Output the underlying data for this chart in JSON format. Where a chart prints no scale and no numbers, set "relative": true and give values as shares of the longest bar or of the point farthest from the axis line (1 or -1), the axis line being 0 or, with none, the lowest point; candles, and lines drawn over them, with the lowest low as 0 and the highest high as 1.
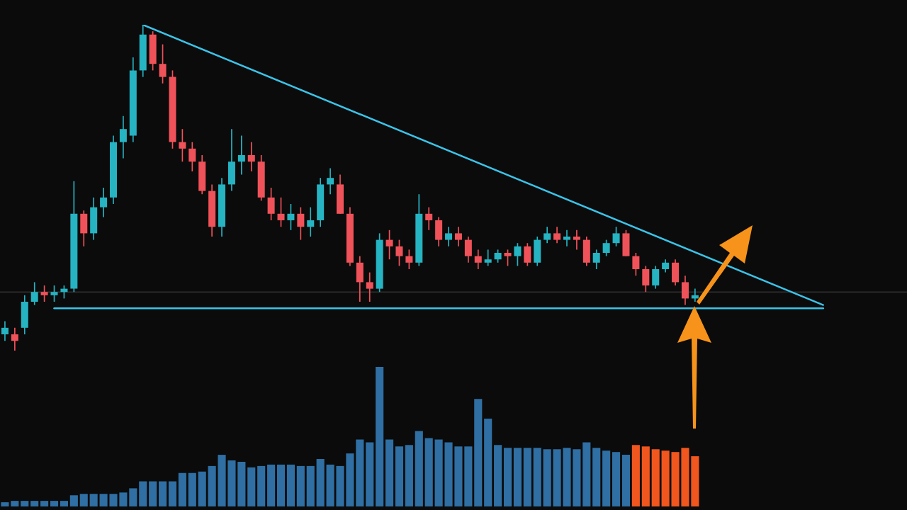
{
  "chart_data": [
    {
      "type": "candlestick",
      "relative": true,
      "legend": false,
      "categories": [
        null,
        null,
        null,
        null,
        null,
        null,
        null,
        null,
        null,
        null,
        null,
        null,
        null,
        null,
        null,
        null,
        null,
        null,
        null,
        null,
        null,
        null,
        null,
        null,
        null,
        null,
        null,
        null,
        null,
        null,
        null,
        null,
        null,
        null,
        null,
        null,
        null,
        null,
        null,
        null,
        null,
        null,
        null,
        null,
        null,
        null,
        null,
        null,
        null,
        null,
        null,
        null,
        null,
        null,
        null,
        null,
        null,
        null,
        null,
        null,
        null,
        null,
        null,
        null,
        null,
        null,
        null,
        null,
        null,
        null,
        null,
        null,
        null,
        null,
        null,
        null,
        null,
        null,
        null,
        null,
        null,
        null,
        null,
        null,
        null,
        null,
        null,
        null,
        null,
        null,
        null,
        null
      ],
      "ohlc": [
        [
          0.05,
          0.09,
          0.03,
          0.07
        ],
        [
          0.05,
          0.07,
          0,
          0.03
        ],
        [
          0.07,
          0.17,
          0.05,
          0.15
        ],
        [
          0.15,
          0.21,
          0.14,
          0.18
        ],
        [
          0.18,
          0.2,
          0.15,
          0.17
        ],
        [
          0.17,
          0.2,
          0.15,
          0.18
        ],
        [
          0.18,
          0.2,
          0.16,
          0.19
        ],
        [
          0.19,
          0.52,
          0.18,
          0.42
        ],
        [
          0.42,
          0.43,
          0.32,
          0.36
        ],
        [
          0.36,
          0.47,
          0.34,
          0.44
        ],
        [
          0.44,
          0.5,
          0.41,
          0.47
        ],
        [
          0.47,
          0.66,
          0.45,
          0.64
        ],
        [
          0.64,
          0.72,
          0.59,
          0.68
        ],
        [
          0.66,
          0.9,
          0.64,
          0.86
        ],
        [
          0.86,
          1,
          0.84,
          0.97
        ],
        [
          0.97,
          0.98,
          0.86,
          0.88
        ],
        [
          0.88,
          0.94,
          0.82,
          0.84
        ],
        [
          0.84,
          0.86,
          0.62,
          0.64
        ],
        [
          0.64,
          0.68,
          0.58,
          0.62
        ],
        [
          0.62,
          0.64,
          0.55,
          0.58
        ],
        [
          0.58,
          0.6,
          0.48,
          0.49
        ],
        [
          0.49,
          0.51,
          0.35,
          0.38
        ],
        [
          0.38,
          0.53,
          0.35,
          0.51
        ],
        [
          0.51,
          0.68,
          0.49,
          0.58
        ],
        [
          0.58,
          0.66,
          0.54,
          0.6
        ],
        [
          0.6,
          0.64,
          0.55,
          0.58
        ],
        [
          0.58,
          0.6,
          0.46,
          0.47
        ],
        [
          0.47,
          0.5,
          0.4,
          0.42
        ],
        [
          0.42,
          0.47,
          0.38,
          0.4
        ],
        [
          0.4,
          0.45,
          0.37,
          0.42
        ],
        [
          0.42,
          0.44,
          0.34,
          0.38
        ],
        [
          0.38,
          0.44,
          0.35,
          0.4
        ],
        [
          0.4,
          0.53,
          0.38,
          0.51
        ],
        [
          0.51,
          0.56,
          0.48,
          0.53
        ],
        [
          0.51,
          0.54,
          0.42,
          0.42
        ],
        [
          0.42,
          0.44,
          0.26,
          0.27
        ],
        [
          0.27,
          0.29,
          0.15,
          0.21
        ],
        [
          0.21,
          0.24,
          0.15,
          0.19
        ],
        [
          0.19,
          0.36,
          0.18,
          0.34
        ],
        [
          0.34,
          0.37,
          0.28,
          0.32
        ],
        [
          0.32,
          0.34,
          0.26,
          0.29
        ],
        [
          0.29,
          0.31,
          0.25,
          0.27
        ],
        [
          0.27,
          0.48,
          0.26,
          0.42
        ],
        [
          0.42,
          0.44,
          0.37,
          0.4
        ],
        [
          0.4,
          0.41,
          0.32,
          0.34
        ],
        [
          0.34,
          0.38,
          0.32,
          0.36
        ],
        [
          0.36,
          0.38,
          0.32,
          0.34
        ],
        [
          0.34,
          0.35,
          0.27,
          0.29
        ],
        [
          0.29,
          0.31,
          0.25,
          0.27
        ],
        [
          0.27,
          0.31,
          0.26,
          0.28
        ],
        [
          0.28,
          0.31,
          0.27,
          0.3
        ],
        [
          0.3,
          0.31,
          0.26,
          0.29
        ],
        [
          0.29,
          0.33,
          0.26,
          0.32
        ],
        [
          0.32,
          0.33,
          0.26,
          0.27
        ],
        [
          0.27,
          0.35,
          0.26,
          0.34
        ],
        [
          0.34,
          0.38,
          0.33,
          0.36
        ],
        [
          0.36,
          0.38,
          0.33,
          0.34
        ],
        [
          0.34,
          0.37,
          0.32,
          0.35
        ],
        [
          0.35,
          0.37,
          0.31,
          0.34
        ],
        [
          0.34,
          0.35,
          0.26,
          0.27
        ],
        [
          0.27,
          0.31,
          0.25,
          0.3
        ],
        [
          0.3,
          0.34,
          0.29,
          0.33
        ],
        [
          0.33,
          0.38,
          0.32,
          0.36
        ],
        [
          0.36,
          0.37,
          0.29,
          0.29
        ],
        [
          0.29,
          0.3,
          0.23,
          0.25
        ],
        [
          0.25,
          0.26,
          0.18,
          0.2
        ],
        [
          0.2,
          0.26,
          0.19,
          0.25
        ],
        [
          0.25,
          0.28,
          0.24,
          0.27
        ],
        [
          0.27,
          0.28,
          0.2,
          0.21
        ],
        [
          0.21,
          0.23,
          0.14,
          0.16
        ],
        [
          0.16,
          0.19,
          0.15,
          0.17
        ],
        null,
        null,
        null,
        null,
        null,
        null,
        null,
        null,
        null,
        null,
        null,
        null,
        null,
        null,
        null,
        null,
        null,
        null,
        null,
        null,
        null
      ],
      "series": [
        {
          "type": "line",
          "color": "#3cc3e8",
          "values": [
            null,
            null,
            null,
            null,
            null,
            null,
            null,
            null,
            null,
            null,
            null,
            null,
            null,
            null,
            1,
            null,
            null,
            null,
            null,
            null,
            null,
            null,
            null,
            null,
            null,
            null,
            null,
            null,
            null,
            null,
            null,
            null,
            null,
            null,
            null,
            null,
            null,
            null,
            null,
            null,
            null,
            null,
            null,
            null,
            null,
            null,
            null,
            null,
            null,
            null,
            null,
            null,
            null,
            null,
            null,
            null,
            null,
            null,
            null,
            null,
            null,
            null,
            null,
            null,
            null,
            null,
            null,
            null,
            null,
            null,
            null,
            null,
            null,
            null,
            null,
            null,
            null,
            null,
            null,
            null,
            null,
            null,
            null,
            0.14,
            null,
            null,
            null,
            null,
            null,
            null,
            null,
            null
          ]
        },
        {
          "type": "line",
          "color": "#3cc3e8",
          "values": [
            null,
            null,
            null,
            null,
            null,
            0.13,
            null,
            null,
            null,
            null,
            null,
            null,
            null,
            null,
            null,
            null,
            null,
            null,
            null,
            null,
            null,
            null,
            null,
            null,
            null,
            null,
            null,
            null,
            null,
            null,
            null,
            null,
            null,
            null,
            null,
            null,
            null,
            null,
            null,
            null,
            null,
            null,
            null,
            null,
            null,
            null,
            null,
            null,
            null,
            null,
            null,
            null,
            null,
            null,
            null,
            null,
            null,
            null,
            null,
            null,
            null,
            null,
            null,
            null,
            null,
            null,
            null,
            null,
            null,
            null,
            null,
            null,
            null,
            null,
            null,
            null,
            null,
            null,
            null,
            null,
            null,
            null,
            null,
            0.13,
            null,
            null,
            null,
            null,
            null,
            null,
            null,
            null
          ]
        }
      ],
      "ref_lines": [
        {
          "axis": "y",
          "value": 0.18,
          "color": "#444444"
        }
      ]
    },
    {
      "type": "bar",
      "relative": true,
      "legend": false,
      "categories": [
        null,
        null,
        null,
        null,
        null,
        null,
        null,
        null,
        null,
        null,
        null,
        null,
        null,
        null,
        null,
        null,
        null,
        null,
        null,
        null,
        null,
        null,
        null,
        null,
        null,
        null,
        null,
        null,
        null,
        null,
        null,
        null,
        null,
        null,
        null,
        null,
        null,
        null,
        null,
        null,
        null,
        null,
        null,
        null,
        null,
        null,
        null,
        null,
        null,
        null,
        null,
        null,
        null,
        null,
        null,
        null,
        null,
        null,
        null,
        null,
        null,
        null,
        null,
        null,
        null,
        null,
        null,
        null,
        null,
        null,
        null,
        null,
        null,
        null,
        null,
        null,
        null,
        null,
        null,
        null,
        null,
        null,
        null,
        null,
        null,
        null,
        null,
        null,
        null,
        null,
        null,
        null
      ],
      "values": [
        0.03,
        0.04,
        0.04,
        0.04,
        0.04,
        0.04,
        0.04,
        0.08,
        0.09,
        0.09,
        0.09,
        0.09,
        0.1,
        0.13,
        0.18,
        0.18,
        0.18,
        0.18,
        0.24,
        0.24,
        0.25,
        0.29,
        0.37,
        0.33,
        0.32,
        0.28,
        0.29,
        0.3,
        0.3,
        0.3,
        0.29,
        0.29,
        0.34,
        0.3,
        0.29,
        0.38,
        0.48,
        0.46,
        1,
        0.48,
        0.43,
        0.44,
        0.54,
        0.49,
        0.48,
        0.46,
        0.43,
        0.43,
        0.77,
        0.63,
        0.44,
        0.42,
        0.42,
        0.42,
        0.42,
        0.41,
        0.41,
        0.42,
        0.41,
        0.46,
        0.42,
        0.4,
        0.39,
        0.37,
        0.44,
        0.43,
        0.41,
        0.4,
        0.39,
        0.42,
        0.36,
        null,
        null,
        null,
        null,
        null,
        null,
        null,
        null,
        null,
        null,
        null,
        null,
        null,
        null,
        null,
        null,
        null,
        null,
        null,
        null,
        null
      ],
      "colors": [
        "#2f6fa3",
        "#2f6fa3",
        "#2f6fa3",
        "#2f6fa3",
        "#2f6fa3",
        "#2f6fa3",
        "#2f6fa3",
        "#2f6fa3",
        "#2f6fa3",
        "#2f6fa3",
        "#2f6fa3",
        "#2f6fa3",
        "#2f6fa3",
        "#2f6fa3",
        "#2f6fa3",
        "#2f6fa3",
        "#2f6fa3",
        "#2f6fa3",
        "#2f6fa3",
        "#2f6fa3",
        "#2f6fa3",
        "#2f6fa3",
        "#2f6fa3",
        "#2f6fa3",
        "#2f6fa3",
        "#2f6fa3",
        "#2f6fa3",
        "#2f6fa3",
        "#2f6fa3",
        "#2f6fa3",
        "#2f6fa3",
        "#2f6fa3",
        "#2f6fa3",
        "#2f6fa3",
        "#2f6fa3",
        "#2f6fa3",
        "#2f6fa3",
        "#2f6fa3",
        "#2f6fa3",
        "#2f6fa3",
        "#2f6fa3",
        "#2f6fa3",
        "#2f6fa3",
        "#2f6fa3",
        "#2f6fa3",
        "#2f6fa3",
        "#2f6fa3",
        "#2f6fa3",
        "#2f6fa3",
        "#2f6fa3",
        "#2f6fa3",
        "#2f6fa3",
        "#2f6fa3",
        "#2f6fa3",
        "#2f6fa3",
        "#2f6fa3",
        "#2f6fa3",
        "#2f6fa3",
        "#2f6fa3",
        "#2f6fa3",
        "#2f6fa3",
        "#2f6fa3",
        "#2f6fa3",
        "#2f6fa3",
        "#f0561e",
        "#f0561e",
        "#f0561e",
        "#f0561e",
        "#f0561e",
        "#f0561e",
        "#f0561e",
        null,
        null,
        null,
        null,
        null,
        null,
        null,
        null,
        null,
        null,
        null,
        null,
        null,
        null,
        null,
        null,
        null,
        null,
        null,
        null,
        null
      ]
    }
  ]
}
